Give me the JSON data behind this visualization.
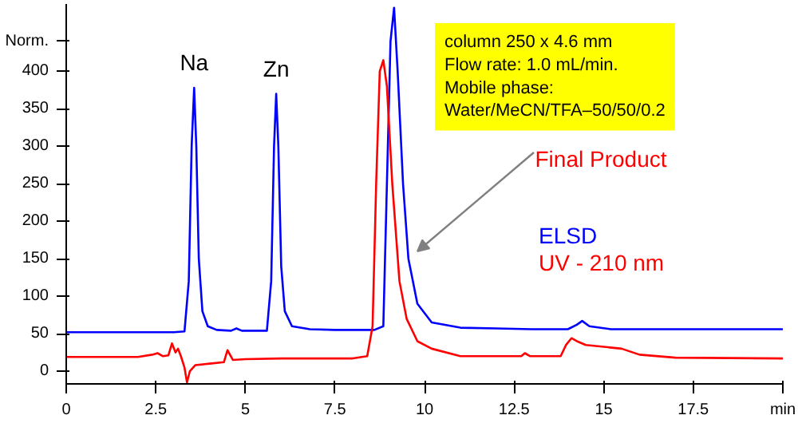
{
  "chart_data": {
    "type": "line",
    "xlim": [
      0,
      20
    ],
    "ylim": [
      -17,
      490
    ],
    "xticks": [
      0,
      2.5,
      5,
      7.5,
      10,
      12.5,
      15,
      17.5,
      {
        "value": 20,
        "label": "min"
      }
    ],
    "yticks": [
      0,
      50,
      100,
      150,
      200,
      250,
      300,
      350,
      400,
      {
        "value": 440,
        "label": "Norm."
      }
    ],
    "grid": false,
    "legend": false,
    "marker": "none",
    "line_style": "solid",
    "series": [
      {
        "name": "ELSD",
        "color": "#0000ff",
        "x": [
          0,
          1,
          2,
          3,
          3.3,
          3.42,
          3.5,
          3.57,
          3.63,
          3.7,
          3.8,
          3.95,
          4.2,
          4.6,
          4.75,
          4.9,
          5.6,
          5.72,
          5.8,
          5.86,
          5.92,
          6.0,
          6.1,
          6.3,
          6.8,
          7.5,
          8.6,
          8.85,
          8.95,
          9.05,
          9.15,
          9.25,
          9.4,
          9.55,
          9.8,
          10.2,
          11,
          12,
          13,
          14,
          14.25,
          14.4,
          14.6,
          15.2,
          17,
          20
        ],
        "values": [
          52,
          52,
          52,
          52,
          53,
          120,
          300,
          378,
          300,
          150,
          80,
          60,
          55,
          54,
          57,
          54,
          54,
          120,
          300,
          370,
          300,
          140,
          80,
          60,
          56,
          55,
          55,
          60,
          250,
          440,
          485,
          400,
          250,
          150,
          90,
          65,
          58,
          57,
          56,
          56,
          62,
          67,
          60,
          56,
          56,
          56
        ]
      },
      {
        "name": "UV - 210 nm",
        "color": "#ff0000",
        "x": [
          0,
          1,
          2,
          2.4,
          2.55,
          2.7,
          2.85,
          2.95,
          3.05,
          3.12,
          3.2,
          3.3,
          3.37,
          3.45,
          3.6,
          4,
          4.4,
          4.5,
          4.65,
          5,
          6,
          7,
          8,
          8.4,
          8.55,
          8.65,
          8.75,
          8.85,
          8.95,
          9.1,
          9.3,
          9.5,
          9.8,
          10.2,
          11,
          12,
          12.7,
          12.8,
          12.95,
          13.8,
          13.95,
          14.1,
          14.25,
          14.5,
          15.5,
          16,
          17,
          20
        ],
        "values": [
          19,
          19,
          19,
          22,
          24,
          20,
          21,
          37,
          25,
          30,
          20,
          5,
          -15,
          0,
          8,
          10,
          12,
          28,
          15,
          16,
          17,
          17,
          17,
          20,
          60,
          250,
          400,
          415,
          380,
          250,
          120,
          70,
          40,
          30,
          20,
          20,
          20,
          24,
          20,
          20,
          35,
          44,
          40,
          35,
          30,
          22,
          18,
          17
        ]
      }
    ],
    "annotations": [
      {
        "text": "Na",
        "x": 3.57,
        "y": 378
      },
      {
        "text": "Zn",
        "x": 5.86,
        "y": 370
      },
      "Final Product",
      "column 250 x 4.6 mm\nFlow rate: 1.0 mL/min.\nMobile phase:\nWater/MeCN/TFA–50/50/0.2"
    ]
  }
}
